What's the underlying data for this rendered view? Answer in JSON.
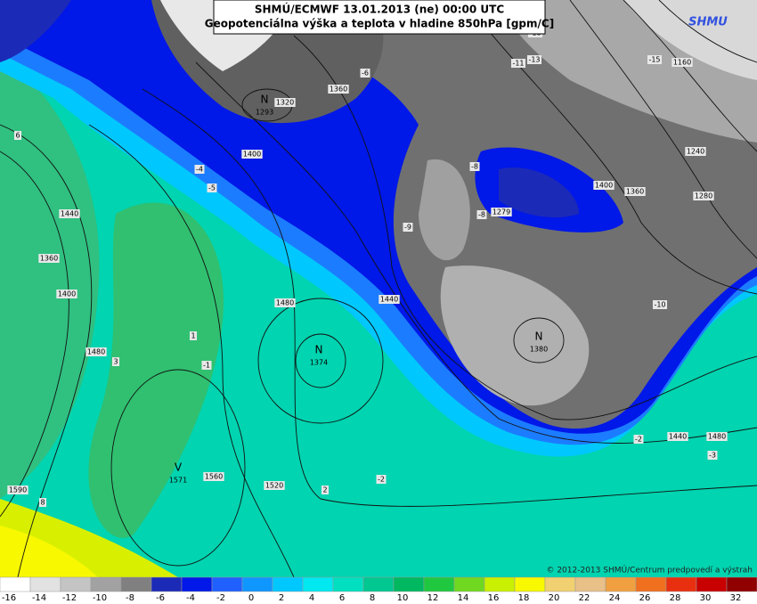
{
  "header": {
    "title_lines": [
      "SHMÚ/ECMWF 13.01.2013 (ne) 00:00 UTC",
      "Geopotenciálna výška a teplota v hladine 850hPa [gpm/C]"
    ],
    "logo": "SHMU"
  },
  "map": {
    "contour_labels": [
      "1320",
      "1360",
      "1400",
      "1440",
      "1360",
      "1400",
      "1480",
      "1480",
      "1520",
      "1560",
      "1590",
      "1440",
      "1440",
      "1480",
      "1240",
      "1280",
      "1360",
      "1400",
      "1160",
      "1279"
    ],
    "temperature_labels": [
      "-6",
      "-11",
      "-13",
      "-15",
      "-18",
      "-4",
      "-5",
      "-8",
      "-8",
      "-9",
      "-10",
      "1",
      "-1",
      "3",
      "8",
      "2",
      "-2",
      "-2",
      "-3",
      "6"
    ],
    "centers": [
      {
        "letter": "N",
        "value": "1293"
      },
      {
        "letter": "N",
        "value": "1374"
      },
      {
        "letter": "N",
        "value": "1380"
      },
      {
        "letter": "V",
        "value": "1571"
      }
    ],
    "copyright": "© 2012-2013 SHMÚ/Centrum predpovedí a výstrah"
  },
  "legend": {
    "labels": [
      -16,
      -14,
      -12,
      -10,
      -8,
      -6,
      -4,
      -2,
      0,
      2,
      4,
      6,
      8,
      10,
      12,
      14,
      16,
      18,
      20,
      22,
      24,
      26,
      28,
      30,
      32
    ],
    "colors": [
      "#ffffff",
      "#e2e2e2",
      "#c4c4c4",
      "#a2a2a2",
      "#808080",
      "#1c2ab8",
      "#0018e8",
      "#2060ff",
      "#1096ff",
      "#00c8ff",
      "#00e8f0",
      "#00e0c0",
      "#00c890",
      "#00b860",
      "#20c840",
      "#70d820",
      "#c8f000",
      "#f8f800",
      "#f0d070",
      "#e8c088",
      "#f0a040",
      "#f07020",
      "#e83010",
      "#c80000",
      "#900000"
    ]
  }
}
